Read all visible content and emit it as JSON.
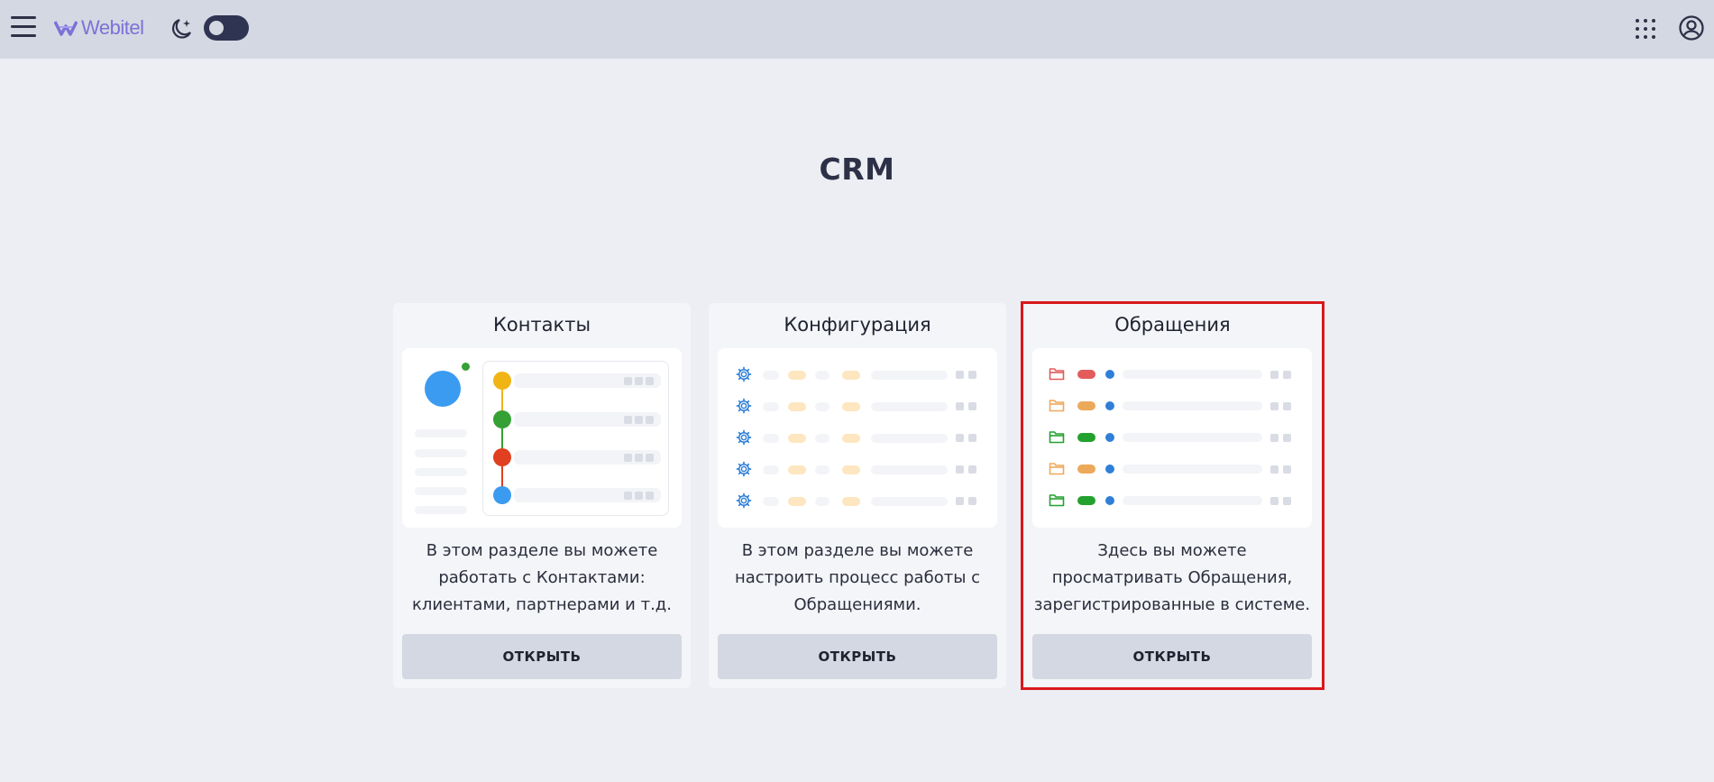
{
  "header": {
    "menu_icon": "hamburger-menu-icon",
    "logo_text": "Webitel",
    "theme_icon": "moon-stars-icon",
    "apps_icon": "apps-grid-icon",
    "account_icon": "account-circle-icon"
  },
  "page": {
    "title": "CRM"
  },
  "cards": [
    {
      "title": "Контакты",
      "description": "В этом разделе вы можете работать с Контактами: клиентами, партнерами и т.д.",
      "button": "ОТКРЫТЬ",
      "selected": false
    },
    {
      "title": "Конфигурация",
      "description": "В этом разделе вы можете настроить процесс работы с Обращениями.",
      "button": "ОТКРЫТЬ",
      "selected": false
    },
    {
      "title": "Обращения",
      "description": "Здесь вы можете просматривать Обращения, зарегистрированные в системе.",
      "button": "ОТКРЫТЬ",
      "selected": true
    }
  ],
  "colors": {
    "accent_logo": "#7b72d8",
    "selection": "#d9181b",
    "status_red": "#e35b5b",
    "status_orange": "#eda95a",
    "status_green": "#23a12f",
    "status_blue": "#2f7fd8",
    "timeline_yellow": "#f0b414",
    "timeline_green": "#35a033",
    "timeline_red": "#e0401f",
    "avatar_blue": "#3b9bf0"
  }
}
